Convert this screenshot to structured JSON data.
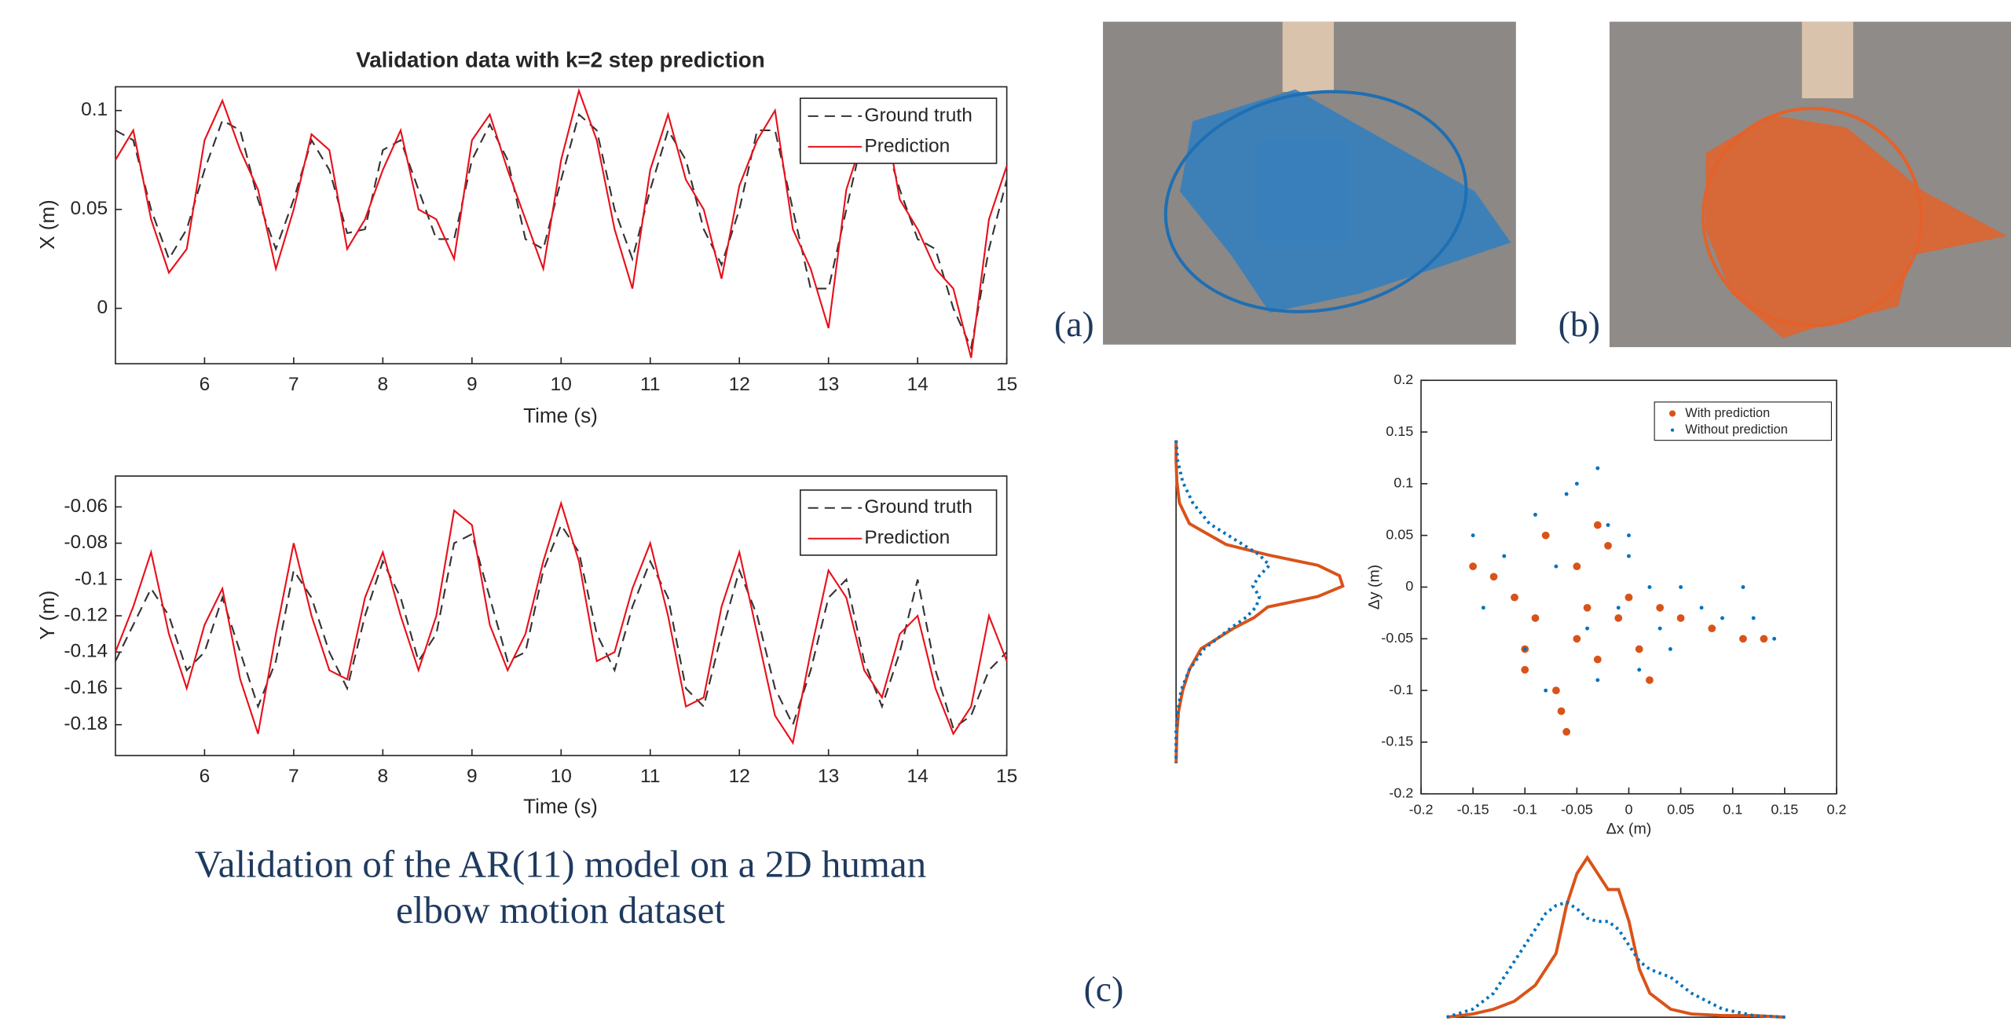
{
  "chart_data": [
    {
      "type": "line",
      "title": "Validation data with k=2 step prediction",
      "xlabel": "Time (s)",
      "ylabel": "X (m)",
      "x": [
        5.0,
        5.2,
        5.4,
        5.6,
        5.8,
        6.0,
        6.2,
        6.4,
        6.6,
        6.8,
        7.0,
        7.2,
        7.4,
        7.6,
        7.8,
        8.0,
        8.2,
        8.4,
        8.6,
        8.8,
        9.0,
        9.2,
        9.4,
        9.6,
        9.8,
        10.0,
        10.2,
        10.4,
        10.6,
        10.8,
        11.0,
        11.2,
        11.4,
        11.6,
        11.8,
        12.0,
        12.2,
        12.4,
        12.6,
        12.8,
        13.0,
        13.2,
        13.4,
        13.6,
        13.8,
        14.0,
        14.2,
        14.4,
        14.6,
        14.8,
        15.0
      ],
      "series": [
        {
          "name": "Ground truth",
          "color": "#333333",
          "dash": "dashed",
          "values": [
            0.09,
            0.085,
            0.05,
            0.025,
            0.04,
            0.07,
            0.095,
            0.09,
            0.055,
            0.03,
            0.055,
            0.085,
            0.07,
            0.038,
            0.04,
            0.08,
            0.085,
            0.06,
            0.035,
            0.035,
            0.075,
            0.093,
            0.075,
            0.035,
            0.03,
            0.065,
            0.098,
            0.09,
            0.05,
            0.025,
            0.06,
            0.09,
            0.075,
            0.04,
            0.022,
            0.05,
            0.09,
            0.09,
            0.05,
            0.01,
            0.01,
            0.05,
            0.09,
            0.09,
            0.06,
            0.035,
            0.03,
            0.0,
            -0.02,
            0.03,
            0.065
          ]
        },
        {
          "name": "Prediction",
          "color": "#e8101a",
          "dash": "solid",
          "values": [
            0.075,
            0.09,
            0.045,
            0.018,
            0.03,
            0.085,
            0.105,
            0.08,
            0.06,
            0.02,
            0.05,
            0.088,
            0.08,
            0.03,
            0.045,
            0.07,
            0.09,
            0.05,
            0.045,
            0.025,
            0.085,
            0.098,
            0.07,
            0.045,
            0.02,
            0.075,
            0.11,
            0.085,
            0.04,
            0.01,
            0.07,
            0.098,
            0.065,
            0.05,
            0.015,
            0.062,
            0.085,
            0.1,
            0.04,
            0.02,
            -0.01,
            0.06,
            0.088,
            0.105,
            0.055,
            0.04,
            0.02,
            0.01,
            -0.025,
            0.045,
            0.072
          ]
        }
      ],
      "xlim": [
        5,
        15
      ],
      "ylim": [
        -0.028,
        0.112
      ],
      "xticks": [
        6,
        7,
        8,
        9,
        10,
        11,
        12,
        13,
        14,
        15
      ],
      "yticks": [
        0,
        0.05,
        0.1
      ]
    },
    {
      "type": "line",
      "xlabel": "Time (s)",
      "ylabel": "Y (m)",
      "x": [
        5.0,
        5.2,
        5.4,
        5.6,
        5.8,
        6.0,
        6.2,
        6.4,
        6.6,
        6.8,
        7.0,
        7.2,
        7.4,
        7.6,
        7.8,
        8.0,
        8.2,
        8.4,
        8.6,
        8.8,
        9.0,
        9.2,
        9.4,
        9.6,
        9.8,
        10.0,
        10.2,
        10.4,
        10.6,
        10.8,
        11.0,
        11.2,
        11.4,
        11.6,
        11.8,
        12.0,
        12.2,
        12.4,
        12.6,
        12.8,
        13.0,
        13.2,
        13.4,
        13.6,
        13.8,
        14.0,
        14.2,
        14.4,
        14.6,
        14.8,
        15.0
      ],
      "series": [
        {
          "name": "Ground truth",
          "color": "#333333",
          "dash": "dashed",
          "values": [
            -0.145,
            -0.125,
            -0.105,
            -0.12,
            -0.15,
            -0.14,
            -0.11,
            -0.14,
            -0.17,
            -0.145,
            -0.095,
            -0.11,
            -0.14,
            -0.16,
            -0.12,
            -0.09,
            -0.11,
            -0.145,
            -0.13,
            -0.08,
            -0.075,
            -0.11,
            -0.145,
            -0.14,
            -0.095,
            -0.07,
            -0.085,
            -0.13,
            -0.15,
            -0.115,
            -0.09,
            -0.11,
            -0.16,
            -0.17,
            -0.13,
            -0.095,
            -0.12,
            -0.16,
            -0.18,
            -0.15,
            -0.11,
            -0.1,
            -0.145,
            -0.17,
            -0.14,
            -0.1,
            -0.15,
            -0.182,
            -0.175,
            -0.15,
            -0.14
          ]
        },
        {
          "name": "Prediction",
          "color": "#e8101a",
          "dash": "solid",
          "values": [
            -0.14,
            -0.115,
            -0.085,
            -0.13,
            -0.16,
            -0.125,
            -0.105,
            -0.155,
            -0.185,
            -0.13,
            -0.08,
            -0.12,
            -0.15,
            -0.155,
            -0.11,
            -0.085,
            -0.12,
            -0.15,
            -0.12,
            -0.062,
            -0.07,
            -0.125,
            -0.15,
            -0.13,
            -0.09,
            -0.058,
            -0.09,
            -0.145,
            -0.14,
            -0.105,
            -0.08,
            -0.12,
            -0.17,
            -0.165,
            -0.115,
            -0.085,
            -0.13,
            -0.175,
            -0.19,
            -0.14,
            -0.095,
            -0.11,
            -0.15,
            -0.165,
            -0.13,
            -0.12,
            -0.16,
            -0.185,
            -0.17,
            -0.12,
            -0.145
          ]
        }
      ],
      "xlim": [
        5,
        15
      ],
      "ylim": [
        -0.197,
        -0.043
      ],
      "xticks": [
        6,
        7,
        8,
        9,
        10,
        11,
        12,
        13,
        14,
        15
      ],
      "yticks": [
        -0.18,
        -0.16,
        -0.14,
        -0.12,
        -0.1,
        -0.08,
        -0.06
      ]
    },
    {
      "type": "scatter",
      "xlabel": "Δx (m)",
      "ylabel": "Δy (m)",
      "series": [
        {
          "name": "With prediction",
          "color": "#d95319",
          "marker": "large",
          "x": [
            -0.15,
            -0.13,
            -0.11,
            -0.1,
            -0.09,
            -0.08,
            -0.07,
            -0.06,
            -0.05,
            -0.05,
            -0.04,
            -0.03,
            -0.02,
            -0.01,
            0,
            0.01,
            0.03,
            0.05,
            0.08,
            0.11,
            0.13,
            -0.065,
            -0.1,
            -0.03,
            0.02
          ],
          "values": [
            0.02,
            0.01,
            -0.01,
            -0.08,
            -0.03,
            0.05,
            -0.1,
            -0.14,
            0.02,
            -0.05,
            -0.02,
            -0.07,
            0.04,
            -0.03,
            -0.01,
            -0.06,
            -0.02,
            -0.03,
            -0.04,
            -0.05,
            -0.05,
            -0.12,
            -0.06,
            0.06,
            -0.09
          ]
        },
        {
          "name": "Without prediction",
          "color": "#0072bd",
          "marker": "small",
          "x": [
            -0.15,
            -0.14,
            -0.12,
            -0.1,
            -0.09,
            -0.08,
            -0.06,
            -0.05,
            -0.04,
            -0.03,
            -0.02,
            -0.01,
            0,
            0.01,
            0.02,
            0.03,
            0.05,
            0.07,
            0.09,
            0.11,
            0.14,
            -0.03,
            -0.07,
            0,
            0.04,
            0.12
          ],
          "values": [
            0.05,
            -0.02,
            0.03,
            -0.06,
            0.07,
            -0.1,
            0.09,
            0.1,
            -0.04,
            0.115,
            0.06,
            -0.02,
            0.03,
            -0.08,
            0,
            -0.04,
            0,
            -0.02,
            -0.03,
            0,
            -0.05,
            -0.09,
            0.02,
            0.05,
            -0.06,
            -0.03
          ]
        }
      ],
      "xlim": [
        -0.2,
        0.2
      ],
      "ylim": [
        -0.2,
        0.2
      ],
      "xticks": [
        -0.2,
        -0.15,
        -0.1,
        -0.05,
        0,
        0.05,
        0.1,
        0.15,
        0.2
      ],
      "yticks": [
        -0.2,
        -0.15,
        -0.1,
        -0.05,
        0,
        0.05,
        0.1,
        0.15,
        0.2
      ]
    },
    {
      "type": "density",
      "orientation": "vertical",
      "x": [
        0.14,
        0.12,
        0.1,
        0.08,
        0.06,
        0.04,
        0.03,
        0.02,
        0.01,
        0,
        -0.01,
        -0.02,
        -0.03,
        -0.04,
        -0.05,
        -0.06,
        -0.08,
        -0.1,
        -0.12,
        -0.14,
        -0.17
      ],
      "xlim": [
        -0.17,
        0.14
      ],
      "ylim": [
        0,
        1
      ],
      "series": [
        {
          "color": "#d95319",
          "dash": "solid",
          "values": [
            0,
            0,
            0.005,
            0.02,
            0.08,
            0.3,
            0.55,
            0.85,
            0.98,
            1.0,
            0.85,
            0.55,
            0.47,
            0.35,
            0.25,
            0.15,
            0.08,
            0.04,
            0.015,
            0.005,
            0
          ]
        },
        {
          "color": "#0072bd",
          "dash": "dotted",
          "values": [
            0,
            0.01,
            0.04,
            0.1,
            0.2,
            0.4,
            0.5,
            0.56,
            0.5,
            0.46,
            0.5,
            0.48,
            0.42,
            0.33,
            0.25,
            0.17,
            0.08,
            0.03,
            0.01,
            0,
            0
          ]
        }
      ]
    },
    {
      "type": "density",
      "orientation": "horizontal",
      "x": [
        -0.175,
        -0.15,
        -0.13,
        -0.11,
        -0.09,
        -0.08,
        -0.07,
        -0.06,
        -0.05,
        -0.04,
        -0.03,
        -0.02,
        -0.01,
        0,
        0.01,
        0.02,
        0.04,
        0.06,
        0.09,
        0.12,
        0.15
      ],
      "xlim": [
        -0.175,
        0.15
      ],
      "ylim": [
        0,
        1
      ],
      "series": [
        {
          "color": "#d95319",
          "dash": "solid",
          "values": [
            0,
            0.02,
            0.05,
            0.1,
            0.2,
            0.3,
            0.4,
            0.7,
            0.9,
            1.0,
            0.9,
            0.8,
            0.8,
            0.6,
            0.3,
            0.15,
            0.05,
            0.02,
            0.01,
            0.01,
            0
          ]
        },
        {
          "color": "#0072bd",
          "dash": "dotted",
          "values": [
            0,
            0.05,
            0.15,
            0.35,
            0.55,
            0.65,
            0.7,
            0.72,
            0.68,
            0.62,
            0.6,
            0.6,
            0.55,
            0.45,
            0.35,
            0.3,
            0.25,
            0.15,
            0.05,
            0.01,
            0
          ]
        }
      ]
    }
  ],
  "caption": "Validation of the AR(11) model on a 2D human elbow motion dataset",
  "panel_labels": [
    "(a)",
    "(b)",
    "(c)"
  ]
}
